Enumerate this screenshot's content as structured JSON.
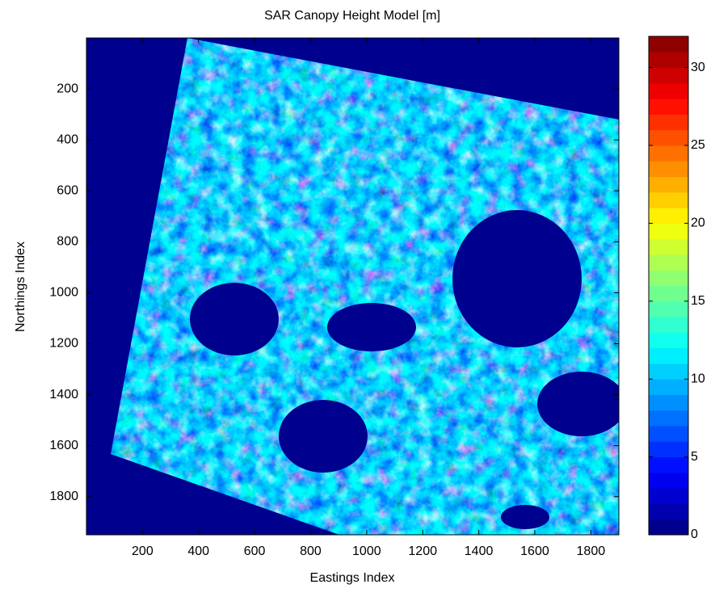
{
  "chart_data": {
    "type": "heatmap",
    "title": "SAR Canopy Height Model [m]",
    "x_label": "Eastings Index",
    "y_label": "Northings Index",
    "xlim": [
      0,
      1900
    ],
    "ylim": [
      0,
      1950
    ],
    "y_reversed": true,
    "xticks": [
      200,
      400,
      600,
      800,
      1000,
      1200,
      1400,
      1600,
      1800
    ],
    "yticks": [
      200,
      400,
      600,
      800,
      1000,
      1200,
      1400,
      1600,
      1800
    ],
    "colorbar": {
      "lim": [
        0,
        32
      ],
      "ticks": [
        0,
        5,
        10,
        15,
        20,
        25,
        30
      ],
      "colormap": "jet"
    }
  }
}
